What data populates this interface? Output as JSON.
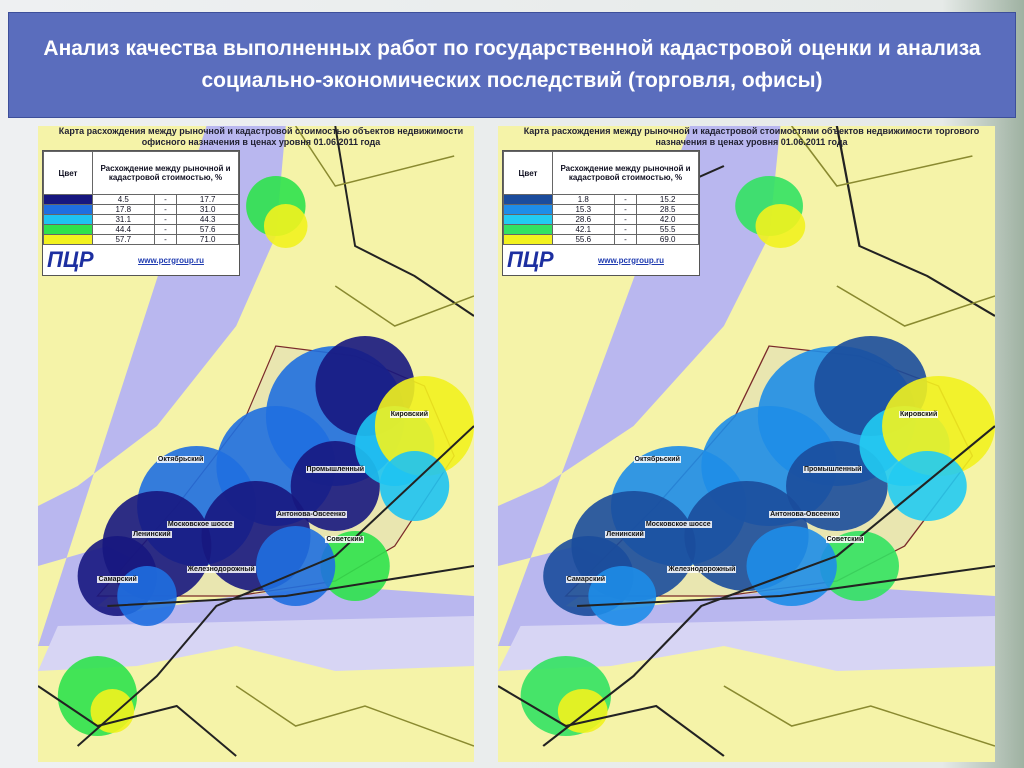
{
  "header": {
    "title": "Анализ качества выполненных работ по государственной кадастровой оценки и анализа социально-экономических последствий (торговля, офисы)"
  },
  "maps": [
    {
      "title": "Карта расхождения между рыночной и кадастровой стоимостью объектов недвижимости офисного назначения в ценах уровня 01.06.2011 года",
      "legend": {
        "color_header": "Цвет",
        "range_header": "Расхождение между рыночной и кадастровой стоимостью, %",
        "separator": "-",
        "rows": [
          {
            "color": "#17177f",
            "from": "4.5",
            "to": "17.7"
          },
          {
            "color": "#1f6fe0",
            "from": "17.8",
            "to": "31.0"
          },
          {
            "color": "#1ec3f2",
            "from": "31.1",
            "to": "44.3"
          },
          {
            "color": "#2fe24c",
            "from": "44.4",
            "to": "57.6"
          },
          {
            "color": "#f2f21e",
            "from": "57.7",
            "to": "71.0"
          }
        ],
        "logo": "ПЦР",
        "website": "www.pcrgroup.ru"
      },
      "labels": [
        "Октябрьский",
        "Промышленный",
        "Кировский",
        "Советский",
        "Ленинский",
        "Самарский",
        "Железнодорожный",
        "Московское шоссе",
        "Антонова-Овсеенко"
      ]
    },
    {
      "title": "Карта расхождения между рыночной и кадастровой стоимостями объектов недвижимости торгового назначения в ценах уровня 01.06.2011 года",
      "legend": {
        "color_header": "Цвет",
        "range_header": "Расхождение между рыночной и кадастровой стоимостью, %",
        "separator": "-",
        "rows": [
          {
            "color": "#1b4c9c",
            "from": "1.8",
            "to": "15.2"
          },
          {
            "color": "#1e8de8",
            "from": "15.3",
            "to": "28.5"
          },
          {
            "color": "#22cbf2",
            "from": "28.6",
            "to": "42.0"
          },
          {
            "color": "#33e262",
            "from": "42.1",
            "to": "55.5"
          },
          {
            "color": "#f2f21e",
            "from": "55.6",
            "to": "69.0"
          }
        ],
        "logo": "ПЦР",
        "website": "www.pcrgroup.ru"
      },
      "labels": [
        "Октябрьский",
        "Промышленный",
        "Кировский",
        "Советский",
        "Ленинский",
        "Самарский",
        "Железнодорожный",
        "Московское шоссе",
        "Антонова-Овсеенко"
      ]
    }
  ]
}
